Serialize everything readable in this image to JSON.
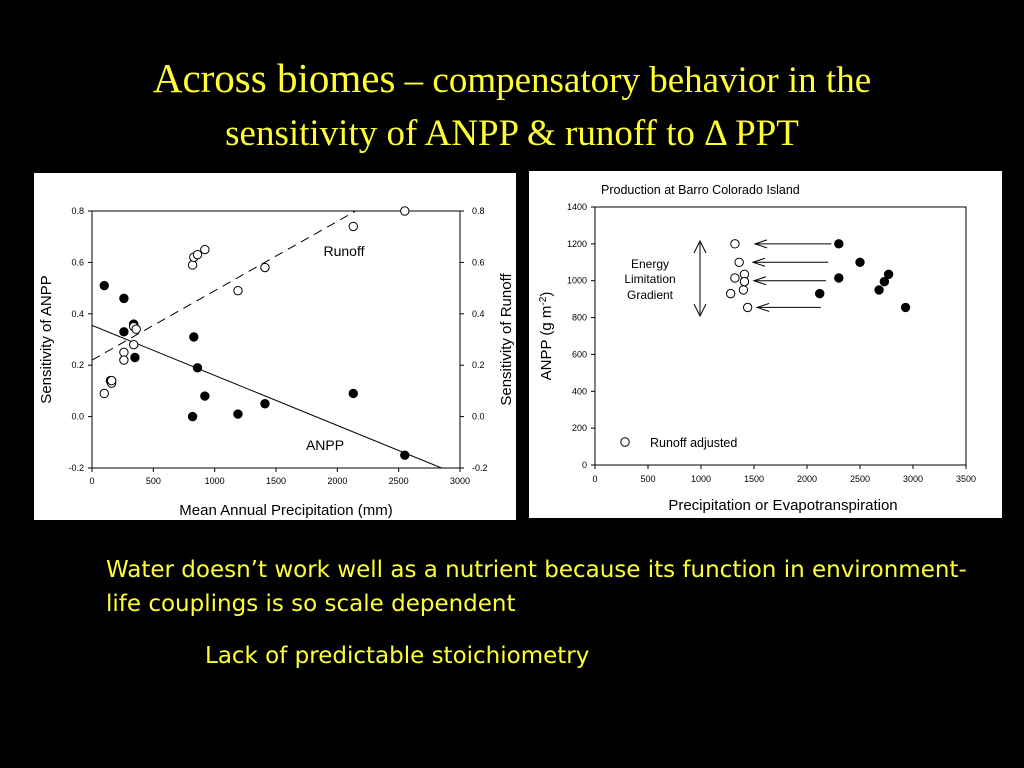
{
  "slide": {
    "title_part1": "Across biomes",
    "title_part2": " – compensatory behavior in the",
    "title_line2": "sensitivity of ANPP & runoff to Δ PPT",
    "text_color": "#ffff33",
    "background": "#000000",
    "bullet1": "Water doesn’t work well as a nutrient because its function in environment-life couplings is so scale dependent",
    "bullet2": "Lack of predictable stoichiometry"
  },
  "chart_data": [
    {
      "type": "scatter",
      "title": "",
      "xlabel": "Mean Annual Precipitation (mm)",
      "ylabel": "Sensitivity of ANPP",
      "y2label": "Sensitivity of Runoff",
      "xlim": [
        0,
        3000
      ],
      "ylim": [
        -0.2,
        0.8
      ],
      "xticks": [
        "0",
        "500",
        "1000",
        "1500",
        "2000",
        "2500",
        "3000"
      ],
      "yticks": [
        "-0.2",
        "0.0",
        "0.2",
        "0.4",
        "0.6",
        "0.8"
      ],
      "y2ticks": [
        "-0.2",
        "0.0",
        "0.2",
        "0.4",
        "0.6",
        "0.8"
      ],
      "annotations": [
        "Runoff",
        "ANPP"
      ],
      "series": [
        {
          "name": "ANPP",
          "marker": "filled-circle",
          "points": [
            [
              100,
              0.51
            ],
            [
              260,
              0.46
            ],
            [
              260,
              0.33
            ],
            [
              150,
              0.14
            ],
            [
              340,
              0.36
            ],
            [
              350,
              0.23
            ],
            [
              830,
              0.31
            ],
            [
              860,
              0.19
            ],
            [
              920,
              0.08
            ],
            [
              820,
              0.0
            ],
            [
              1190,
              0.01
            ],
            [
              1410,
              0.05
            ],
            [
              2130,
              0.09
            ],
            [
              2550,
              -0.15
            ]
          ],
          "fit": {
            "line": "solid",
            "from": [
              0,
              0.355
            ],
            "to": [
              2850,
              -0.2
            ]
          }
        },
        {
          "name": "Runoff",
          "marker": "open-circle",
          "points": [
            [
              100,
              0.09
            ],
            [
              160,
              0.13
            ],
            [
              160,
              0.14
            ],
            [
              260,
              0.25
            ],
            [
              260,
              0.22
            ],
            [
              340,
              0.28
            ],
            [
              340,
              0.35
            ],
            [
              360,
              0.34
            ],
            [
              820,
              0.59
            ],
            [
              830,
              0.62
            ],
            [
              860,
              0.63
            ],
            [
              920,
              0.65
            ],
            [
              1190,
              0.49
            ],
            [
              1410,
              0.58
            ],
            [
              2130,
              0.74
            ],
            [
              2550,
              0.8
            ]
          ],
          "fit": {
            "line": "dashed",
            "from": [
              0,
              0.22
            ],
            "to": [
              2150,
              0.8
            ]
          }
        }
      ]
    },
    {
      "type": "scatter",
      "title": "Production at Barro Colorado Island",
      "xlabel": "Precipitation or Evapotranspiration",
      "ylabel": "ANPP (g m-2)",
      "xlim": [
        0,
        3500
      ],
      "ylim": [
        0,
        1400
      ],
      "xticks": [
        "0",
        "500",
        "1000",
        "1500",
        "2000",
        "2500",
        "3000",
        "3500"
      ],
      "yticks": [
        "0",
        "200",
        "400",
        "600",
        "800",
        "1000",
        "1200",
        "1400"
      ],
      "annotations": [
        "Energy",
        "Limitation",
        "Gradient"
      ],
      "legend": "Runoff adjusted",
      "series": [
        {
          "name": "",
          "marker": "filled-circle",
          "points": [
            [
              2120,
              930
            ],
            [
              2300,
              1200
            ],
            [
              2300,
              1015
            ],
            [
              2500,
              1100
            ],
            [
              2680,
              950
            ],
            [
              2730,
              995
            ],
            [
              2770,
              1035
            ],
            [
              2930,
              855
            ]
          ]
        },
        {
          "name": "Runoff adjusted",
          "marker": "open-circle",
          "points": [
            [
              1320,
              1200
            ],
            [
              1360,
              1100
            ],
            [
              1410,
              1035
            ],
            [
              1320,
              1015
            ],
            [
              1410,
              995
            ],
            [
              1280,
              930
            ],
            [
              1400,
              950
            ],
            [
              1440,
              855
            ]
          ]
        }
      ]
    }
  ]
}
